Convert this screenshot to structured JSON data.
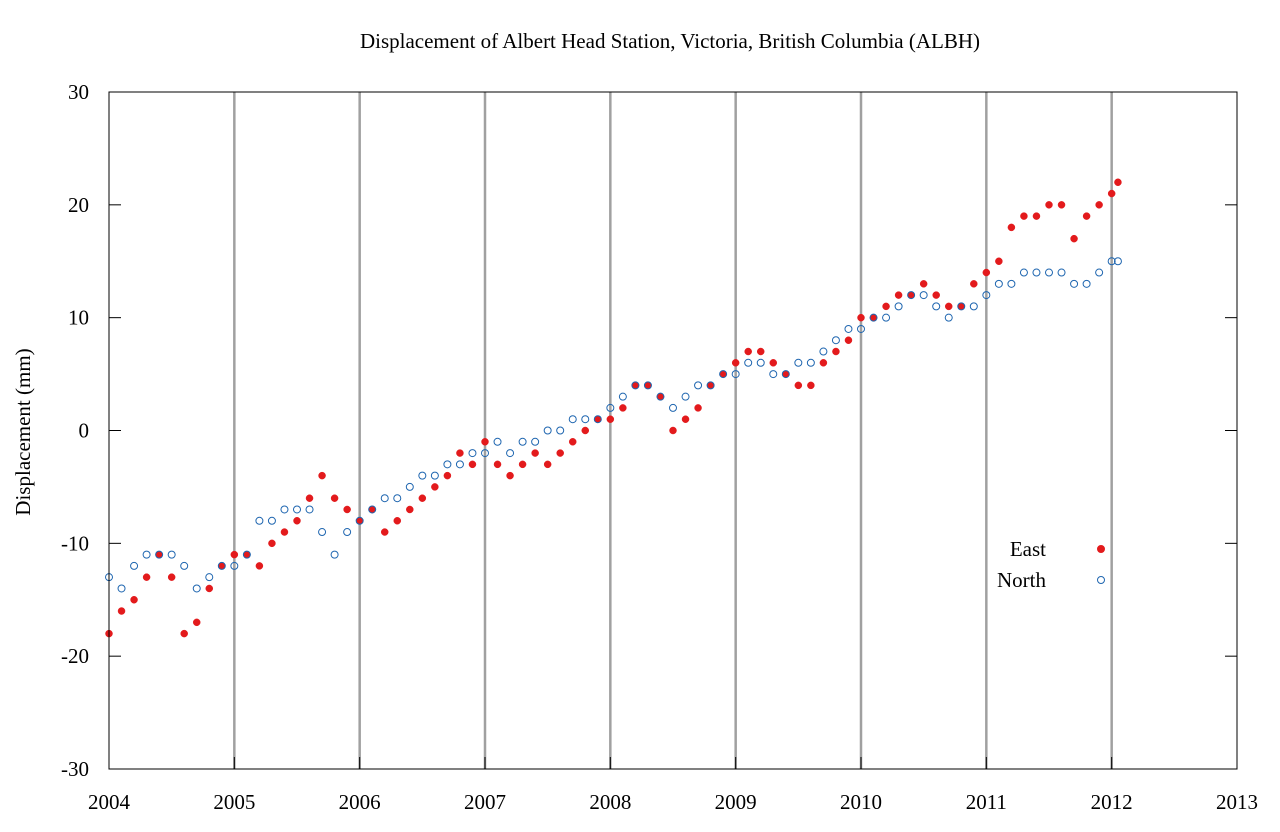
{
  "chart_data": {
    "type": "scatter",
    "title": "Displacement of Albert Head Station, Victoria, British Columbia (ALBH)",
    "y_label": "Displacement (mm)",
    "xlim": [
      2004,
      2013
    ],
    "ylim": [
      -30,
      30
    ],
    "xticks": [
      2004,
      2005,
      2006,
      2007,
      2008,
      2009,
      2010,
      2011,
      2012,
      2013
    ],
    "yticks": [
      -30,
      -20,
      -10,
      0,
      10,
      20,
      30
    ],
    "grid": "x",
    "legend": "right",
    "x": [
      2004.0,
      2004.1,
      2004.2,
      2004.3,
      2004.4,
      2004.5,
      2004.6,
      2004.7,
      2004.8,
      2004.9,
      2005.0,
      2005.1,
      2005.2,
      2005.3,
      2005.4,
      2005.5,
      2005.6,
      2005.7,
      2005.8,
      2005.9,
      2006.0,
      2006.1,
      2006.2,
      2006.3,
      2006.4,
      2006.5,
      2006.6,
      2006.7,
      2006.8,
      2006.9,
      2007.0,
      2007.1,
      2007.2,
      2007.3,
      2007.4,
      2007.5,
      2007.6,
      2007.7,
      2007.8,
      2007.9,
      2008.0,
      2008.1,
      2008.2,
      2008.3,
      2008.4,
      2008.5,
      2008.6,
      2008.7,
      2008.8,
      2008.9,
      2009.0,
      2009.1,
      2009.2,
      2009.3,
      2009.4,
      2009.5,
      2009.6,
      2009.7,
      2009.8,
      2009.9,
      2010.0,
      2010.1,
      2010.2,
      2010.3,
      2010.4,
      2010.5,
      2010.6,
      2010.7,
      2010.8,
      2010.9,
      2011.0,
      2011.1,
      2011.2,
      2011.3,
      2011.4,
      2011.5,
      2011.6,
      2011.7,
      2011.8,
      2011.9,
      2012.0,
      2012.05
    ],
    "series": [
      {
        "name": "East",
        "color": "#e31a1c",
        "marker": "filled",
        "values": [
          -18,
          -16,
          -15,
          -13,
          -11,
          -13,
          -18,
          -17,
          -14,
          -12,
          -11,
          -11,
          -12,
          -10,
          -9,
          -8,
          -6,
          -4,
          -6,
          -7,
          -8,
          -7,
          -9,
          -8,
          -7,
          -6,
          -5,
          -4,
          -2,
          -3,
          -1,
          -3,
          -4,
          -3,
          -2,
          -3,
          -2,
          -1,
          0,
          1,
          1,
          2,
          4,
          4,
          3,
          0,
          1,
          2,
          4,
          5,
          6,
          7,
          7,
          6,
          5,
          4,
          4,
          6,
          7,
          8,
          10,
          10,
          11,
          12,
          12,
          13,
          12,
          11,
          11,
          13,
          14,
          15,
          18,
          19,
          19,
          20,
          20,
          17,
          19,
          20,
          21,
          22
        ]
      },
      {
        "name": "North",
        "color": "#1f66b0",
        "marker": "open",
        "values": [
          -13,
          -14,
          -12,
          -11,
          -11,
          -11,
          -12,
          -14,
          -13,
          -12,
          -12,
          -11,
          -8,
          -8,
          -7,
          -7,
          -7,
          -9,
          -11,
          -9,
          -8,
          -7,
          -6,
          -6,
          -5,
          -4,
          -4,
          -3,
          -3,
          -2,
          -2,
          -1,
          -2,
          -1,
          -1,
          0,
          0,
          1,
          1,
          1,
          2,
          3,
          4,
          4,
          3,
          2,
          3,
          4,
          4,
          5,
          5,
          6,
          6,
          5,
          5,
          6,
          6,
          7,
          8,
          9,
          9,
          10,
          10,
          11,
          12,
          12,
          11,
          10,
          11,
          11,
          12,
          13,
          13,
          14,
          14,
          14,
          14,
          13,
          13,
          14,
          15,
          15
        ]
      }
    ]
  }
}
